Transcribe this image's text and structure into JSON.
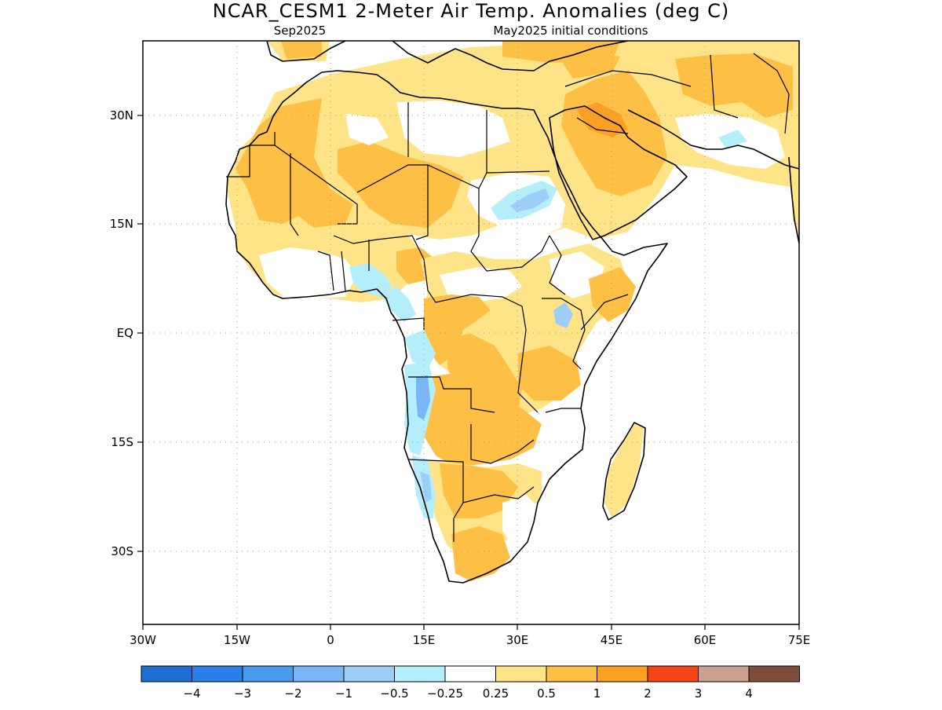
{
  "title": "NCAR_CESM1 2-Meter Air Temp. Anomalies (deg C)",
  "subtitle_left": "Sep2025",
  "subtitle_right": "May2025 initial conditions",
  "lon_ticks": [
    "30W",
    "15W",
    "0",
    "15E",
    "30E",
    "45E",
    "60E",
    "75E"
  ],
  "lat_ticks": [
    "30N",
    "15N",
    "EQ",
    "15S",
    "30S"
  ],
  "colorbar": {
    "colors": [
      "#1e6fd4",
      "#2a80e8",
      "#4a9af0",
      "#78b6f5",
      "#9dcef8",
      "#b4eefa",
      "#ffffff",
      "#fee487",
      "#fdc044",
      "#fba023",
      "#f64416",
      "#c9a092",
      "#7d4e3e"
    ],
    "labels": [
      "-4",
      "-3",
      "-2",
      "-1",
      "-0.5",
      "-0.25",
      "0.25",
      "0.5",
      "1",
      "2",
      "3",
      "4"
    ]
  }
}
